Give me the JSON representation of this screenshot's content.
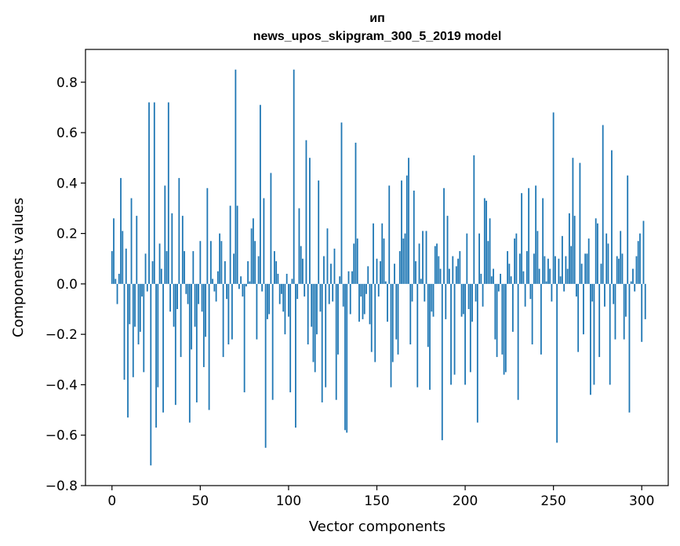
{
  "chart_data": {
    "type": "bar",
    "title_line1": "ип",
    "title_line2": "news_upos_skipgram_300_5_2019 model",
    "xlabel": "Vector components",
    "ylabel": "Components values",
    "xlim": [
      -15,
      315
    ],
    "ylim": [
      -0.8,
      0.93
    ],
    "xticks": [
      0,
      50,
      100,
      150,
      200,
      250,
      300
    ],
    "xtick_labels": [
      "0",
      "50",
      "100",
      "150",
      "200",
      "250",
      "300"
    ],
    "yticks": [
      -0.8,
      -0.6,
      -0.4,
      -0.2,
      0.0,
      0.2,
      0.4,
      0.6,
      0.8
    ],
    "ytick_labels": [
      "−0.8",
      "−0.6",
      "−0.4",
      "−0.2",
      "0.0",
      "0.2",
      "0.4",
      "0.6",
      "0.8"
    ],
    "bar_color": "#1f77b4",
    "x_start": 0,
    "values": [
      0.13,
      0.26,
      0.02,
      -0.08,
      0.04,
      0.42,
      0.21,
      -0.38,
      0.14,
      -0.53,
      -0.16,
      0.34,
      -0.37,
      -0.17,
      0.27,
      -0.24,
      -0.19,
      -0.05,
      -0.35,
      0.12,
      -0.03,
      0.72,
      -0.72,
      0.09,
      0.72,
      -0.57,
      -0.41,
      0.16,
      0.06,
      -0.51,
      0.39,
      0.13,
      0.72,
      -0.11,
      0.28,
      -0.17,
      -0.48,
      -0.1,
      0.42,
      -0.29,
      0.27,
      0.13,
      -0.04,
      -0.08,
      -0.55,
      -0.26,
      0.13,
      -0.17,
      -0.47,
      -0.08,
      0.17,
      -0.11,
      -0.33,
      -0.21,
      0.38,
      -0.5,
      0.17,
      0.02,
      -0.03,
      -0.07,
      0.05,
      0.2,
      0.17,
      -0.29,
      0.09,
      -0.06,
      -0.24,
      0.31,
      -0.22,
      0.12,
      0.85,
      0.31,
      -0.02,
      0.03,
      -0.05,
      -0.43,
      -0.01,
      0.09,
      0.01,
      0.22,
      0.26,
      0.17,
      -0.22,
      0.11,
      0.71,
      -0.03,
      0.34,
      -0.65,
      -0.14,
      -0.12,
      0.44,
      -0.46,
      0.13,
      0.09,
      0.04,
      -0.08,
      -0.04,
      -0.11,
      -0.2,
      0.04,
      -0.13,
      -0.43,
      0.02,
      0.85,
      -0.57,
      -0.06,
      0.3,
      0.15,
      0.1,
      -0.05,
      0.57,
      -0.24,
      0.5,
      -0.17,
      -0.31,
      -0.35,
      -0.2,
      0.41,
      -0.11,
      -0.47,
      0.11,
      -0.41,
      0.22,
      -0.08,
      0.08,
      -0.07,
      0.14,
      -0.46,
      -0.28,
      0.03,
      0.64,
      -0.09,
      -0.58,
      -0.59,
      0.05,
      -0.12,
      0.05,
      0.16,
      0.56,
      0.18,
      -0.15,
      -0.05,
      -0.14,
      -0.12,
      -0.04,
      0.07,
      -0.16,
      -0.27,
      0.24,
      -0.31,
      0.1,
      -0.05,
      0.09,
      0.24,
      0.18,
      0.01,
      -0.15,
      0.39,
      -0.41,
      -0.31,
      0.08,
      -0.22,
      -0.28,
      0.13,
      0.41,
      0.18,
      0.2,
      0.43,
      0.5,
      -0.24,
      -0.07,
      0.37,
      0.09,
      -0.41,
      0.16,
      0.02,
      0.21,
      -0.07,
      0.21,
      -0.25,
      -0.42,
      -0.11,
      -0.13,
      0.15,
      0.16,
      0.11,
      0.06,
      -0.62,
      0.38,
      -0.14,
      0.27,
      0.06,
      -0.4,
      0.11,
      -0.36,
      0.07,
      0.1,
      0.13,
      -0.13,
      -0.12,
      -0.4,
      0.2,
      -0.1,
      -0.35,
      -0.15,
      0.51,
      -0.07,
      -0.55,
      0.2,
      0.04,
      -0.09,
      0.34,
      0.33,
      0.17,
      0.26,
      0.03,
      0.06,
      -0.22,
      -0.29,
      -0.03,
      0.04,
      -0.28,
      -0.36,
      -0.35,
      0.13,
      0.08,
      0.03,
      -0.19,
      0.18,
      0.2,
      -0.46,
      0.12,
      0.36,
      0.05,
      -0.09,
      0.13,
      0.38,
      -0.06,
      -0.24,
      0.12,
      0.39,
      0.21,
      0.06,
      -0.28,
      0.34,
      0.11,
      0.01,
      0.1,
      0.06,
      -0.07,
      0.68,
      0.11,
      -0.63,
      0.1,
      0.03,
      0.19,
      -0.03,
      0.11,
      0.06,
      0.28,
      0.15,
      0.5,
      0.27,
      -0.05,
      -0.27,
      0.48,
      0.08,
      -0.2,
      0.12,
      0.12,
      0.18,
      -0.44,
      -0.07,
      -0.4,
      0.26,
      0.24,
      -0.29,
      0.08,
      0.63,
      -0.09,
      0.2,
      0.16,
      -0.4,
      0.53,
      -0.08,
      -0.22,
      0.11,
      0.1,
      0.21,
      0.12,
      -0.22,
      -0.13,
      0.43,
      -0.51,
      0.01,
      0.06,
      -0.03,
      0.11,
      0.17,
      0.2,
      -0.23,
      0.25,
      -0.14
    ]
  }
}
